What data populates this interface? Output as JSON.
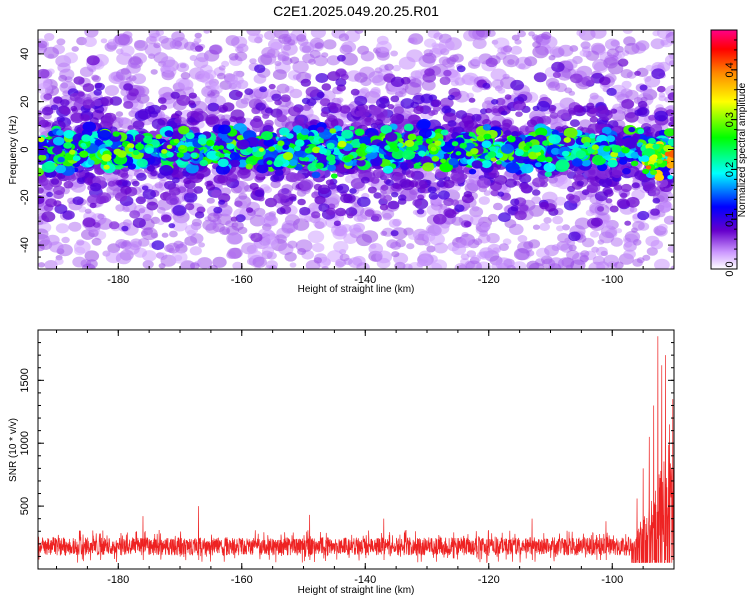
{
  "title": "C2E1.2025.049.20.25.R01",
  "chart_data": [
    {
      "type": "heatmap",
      "xlabel": "Height of straight line (km)",
      "ylabel": "Frequency (Hz)",
      "xlim": [
        -193,
        -90
      ],
      "ylim": [
        -50,
        50
      ],
      "xticks": [
        -180,
        -160,
        -140,
        -120,
        -100
      ],
      "yticks": [
        -40,
        -20,
        0,
        20,
        40
      ],
      "grid": false,
      "band_center_hz": 0,
      "band_halfwidth_hz": 12,
      "colorbar": {
        "label": "Normalized spectral amplitude",
        "range": [
          0.0,
          0.48
        ],
        "ticks": [
          0.0,
          0.1,
          0.2,
          0.3,
          0.4
        ],
        "colormap": [
          "#ffffff",
          "#cc99ff",
          "#6600cc",
          "#0000ff",
          "#00ffff",
          "#00ff00",
          "#ffff00",
          "#ff8800",
          "#ff0000",
          "#ff0088"
        ]
      }
    },
    {
      "type": "line",
      "xlabel": "Height of straight line (km)",
      "ylabel": "SNR (10 * v/v)",
      "xlim": [
        -193,
        -90
      ],
      "ylim": [
        0,
        1900
      ],
      "xticks": [
        -180,
        -160,
        -140,
        -120,
        -100
      ],
      "yticks": [
        500,
        1000,
        1500
      ],
      "grid": false,
      "color": "#ee2222",
      "baseline_snr": 180,
      "noise_range": [
        50,
        310
      ],
      "spikes": [
        {
          "x": -176,
          "y": 420
        },
        {
          "x": -167,
          "y": 500
        },
        {
          "x": -149,
          "y": 430
        },
        {
          "x": -137,
          "y": 400
        },
        {
          "x": -113,
          "y": 400
        },
        {
          "x": -101,
          "y": 380
        },
        {
          "x": -96,
          "y": 560
        },
        {
          "x": -95,
          "y": 800
        },
        {
          "x": -94,
          "y": 1050
        },
        {
          "x": -93.3,
          "y": 1300
        },
        {
          "x": -92.6,
          "y": 1850
        },
        {
          "x": -92,
          "y": 1620
        },
        {
          "x": -91.4,
          "y": 1700
        },
        {
          "x": -90.7,
          "y": 1150
        },
        {
          "x": -90.2,
          "y": 1350
        }
      ]
    }
  ]
}
